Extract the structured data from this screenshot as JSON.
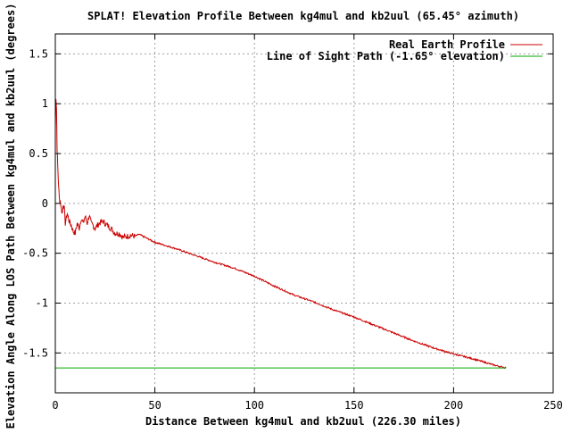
{
  "chart_data": {
    "type": "line",
    "title": "SPLAT! Elevation Profile Between kg4mul and kb2uul (65.45° azimuth)",
    "xlabel": "Distance Between kg4mul and kb2uul (226.30 miles)",
    "ylabel": "Elevation Angle Along LOS Path Between kg4mul and kb2uul (degrees)",
    "xlim": [
      0,
      250
    ],
    "ylim": [
      -1.9,
      1.7
    ],
    "x_ticks": [
      0,
      50,
      100,
      150,
      200,
      250
    ],
    "x_tick_labels": [
      "0",
      "50",
      "100",
      "150",
      "200",
      "250"
    ],
    "y_ticks": [
      1.5,
      1,
      0.5,
      0,
      -0.5,
      -1,
      -1.5
    ],
    "y_tick_labels": [
      "1.5",
      "1",
      "0.5",
      "0",
      "-0.5",
      "-1",
      "-1.5"
    ],
    "grid": true,
    "legend_position": "top-right",
    "colors": {
      "real_earth": "#cc0000",
      "los": "#00aa00",
      "grid": "#a0a0a0",
      "axes": "#000000"
    },
    "series": [
      {
        "name": "Real Earth Profile",
        "x": [
          0,
          0.3,
          0.6,
          0.9,
          1.2,
          1.6,
          2,
          2.5,
          3,
          3.5,
          4,
          4.5,
          5,
          6,
          7,
          8,
          9,
          10,
          11,
          12,
          13,
          14,
          15,
          16,
          17,
          18,
          19,
          20,
          22,
          24,
          26,
          28,
          30,
          32,
          34,
          36,
          38,
          40,
          42,
          44,
          46,
          48,
          50,
          60,
          70,
          80,
          90,
          100,
          110,
          120,
          130,
          140,
          150,
          160,
          170,
          180,
          190,
          200,
          210,
          220,
          226.3
        ],
        "y": [
          0.75,
          1.07,
          0.95,
          0.55,
          0.38,
          0.2,
          0.05,
          0.02,
          -0.05,
          -0.1,
          0.0,
          -0.05,
          -0.2,
          -0.1,
          -0.18,
          -0.22,
          -0.28,
          -0.3,
          -0.2,
          -0.25,
          -0.15,
          -0.2,
          -0.13,
          -0.2,
          -0.12,
          -0.2,
          -0.22,
          -0.25,
          -0.2,
          -0.18,
          -0.22,
          -0.25,
          -0.3,
          -0.3,
          -0.34,
          -0.33,
          -0.32,
          -0.33,
          -0.31,
          -0.33,
          -0.35,
          -0.37,
          -0.39,
          -0.45,
          -0.52,
          -0.59,
          -0.65,
          -0.73,
          -0.83,
          -0.92,
          -0.99,
          -1.07,
          -1.14,
          -1.22,
          -1.3,
          -1.38,
          -1.45,
          -1.51,
          -1.56,
          -1.62,
          -1.65
        ]
      },
      {
        "name": "Line of Sight Path (-1.65° elevation)",
        "x": [
          0,
          226.3
        ],
        "y": [
          -1.65,
          -1.65
        ]
      }
    ]
  }
}
